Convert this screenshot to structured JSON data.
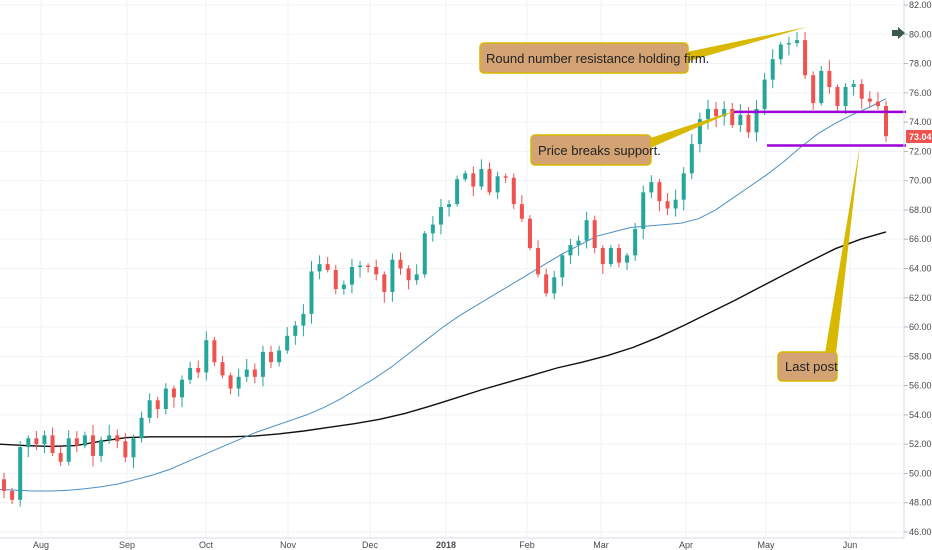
{
  "chart_data": {
    "type": "candlestick",
    "ylim": [
      46,
      82
    ],
    "y_ticks": [
      "46.00",
      "48.00",
      "50.00",
      "52.00",
      "54.00",
      "56.00",
      "58.00",
      "60.00",
      "62.00",
      "64.00",
      "66.00",
      "68.00",
      "70.00",
      "72.00",
      "74.00",
      "76.00",
      "78.00",
      "80.00",
      "82.00"
    ],
    "x_ticks": [
      {
        "label": "Aug",
        "bold": false
      },
      {
        "label": "Sep",
        "bold": false
      },
      {
        "label": "Oct",
        "bold": false
      },
      {
        "label": "Nov",
        "bold": false
      },
      {
        "label": "Dec",
        "bold": false
      },
      {
        "label": "2018",
        "bold": true
      },
      {
        "label": "Feb",
        "bold": false
      },
      {
        "label": "Mar",
        "bold": false
      },
      {
        "label": "Apr",
        "bold": false
      },
      {
        "label": "May",
        "bold": false
      },
      {
        "label": "Jun",
        "bold": false
      }
    ],
    "last_price": "73.04",
    "colors": {
      "up": "#26a69a",
      "down": "#ef5350",
      "ma_fast": "#4a90c8",
      "ma_slow": "#111111",
      "levels": "#9b00d9",
      "callout_fill": "#d4a373",
      "callout_border": "#d9b800",
      "price_tag": "#ef5350",
      "grid": "#f0f3f8"
    },
    "support_levels": [
      74.7,
      72.4
    ],
    "closes": [
      48.8,
      48.2,
      51.8,
      52.4,
      52.0,
      52.6,
      51.4,
      50.8,
      52.4,
      51.9,
      52.6,
      51.2,
      52.3,
      52.6,
      52.2,
      51.1,
      52.4,
      53.8,
      55.0,
      54.4,
      55.8,
      55.2,
      56.4,
      57.2,
      56.9,
      59.1,
      57.6,
      56.7,
      55.8,
      56.6,
      57.1,
      56.6,
      58.3,
      57.6,
      58.4,
      59.4,
      60.1,
      60.9,
      63.8,
      64.3,
      63.9,
      62.6,
      62.9,
      64.1,
      64.2,
      64.1,
      63.6,
      62.4,
      64.6,
      64.0,
      63.2,
      63.6,
      66.4,
      67.0,
      68.2,
      68.4,
      70.1,
      70.5,
      69.6,
      70.8,
      69.2,
      70.3,
      70.2,
      68.4,
      67.4,
      65.4,
      63.6,
      62.3,
      63.4,
      64.9,
      65.6,
      65.9,
      67.3,
      65.4,
      64.3,
      65.4,
      64.4,
      64.9,
      66.7,
      69.2,
      69.9,
      68.6,
      68.1,
      68.7,
      70.5,
      72.5,
      74.2,
      74.9,
      74.4,
      74.9,
      73.8,
      74.5,
      73.3,
      74.9,
      76.9,
      78.3,
      79.3,
      79.4,
      79.6,
      77.2,
      75.3,
      77.5,
      76.4,
      75.1,
      76.4,
      76.6,
      75.6,
      75.4,
      75.1,
      73.04
    ],
    "ma_fast": [
      48.9,
      48.85,
      48.8,
      48.8,
      48.85,
      48.95,
      49.1,
      49.3,
      49.6,
      49.9,
      50.3,
      50.8,
      51.3,
      51.8,
      52.3,
      52.8,
      53.2,
      53.6,
      54.0,
      54.5,
      55.1,
      55.8,
      56.5,
      57.3,
      58.2,
      59.1,
      60.0,
      60.8,
      61.5,
      62.2,
      62.9,
      63.6,
      64.3,
      65.0,
      65.6,
      66.2,
      66.5,
      66.8,
      66.9,
      67.0,
      67.1,
      67.4,
      68.0,
      68.8,
      69.6,
      70.4,
      71.3,
      72.3,
      73.2,
      73.9,
      74.5,
      75.0,
      75.6
    ],
    "ma_slow": [
      52.0,
      51.9,
      51.85,
      51.9,
      52.2,
      52.45,
      52.5,
      52.5,
      52.5,
      52.5,
      52.55,
      52.7,
      52.9,
      53.15,
      53.4,
      53.7,
      54.1,
      54.6,
      55.15,
      55.7,
      56.2,
      56.7,
      57.2,
      57.6,
      58.05,
      58.6,
      59.3,
      60.1,
      60.95,
      61.8,
      62.7,
      63.6,
      64.5,
      65.35,
      66.0,
      66.5
    ]
  },
  "annotations": {
    "resistance": "Round number resistance holding firm.",
    "support": "Price breaks support.",
    "last_post": "Last post"
  }
}
